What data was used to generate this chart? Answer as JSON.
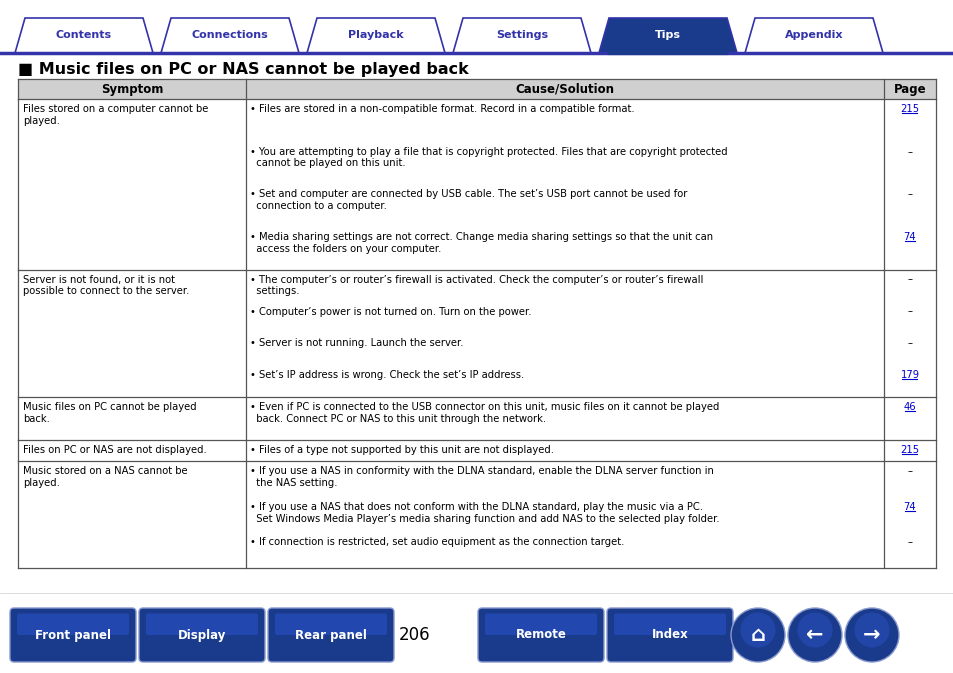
{
  "title": "Music files on PC or NAS cannot be played back",
  "tab_labels": [
    "Contents",
    "Connections",
    "Playback",
    "Settings",
    "Tips",
    "Appendix"
  ],
  "active_tab": 4,
  "tab_color_active": "#1a3a8c",
  "tab_color_inactive_fill": "#ffffff",
  "tab_color_inactive_text": "#3333aa",
  "tab_border_color": "#3333aa",
  "header_cols": [
    "Symptom",
    "Cause/Solution",
    "Page"
  ],
  "header_bg": "#d0d0d0",
  "rows": [
    {
      "symptom": "Files stored on a computer cannot be\nplayed.",
      "causes": [
        "• Files are stored in a non-compatible format. Record in a compatible format.",
        "• You are attempting to play a file that is copyright protected. Files that are copyright protected\n  cannot be played on this unit.",
        "• Set and computer are connected by USB cable. The set’s USB port cannot be used for\n  connection to a computer.",
        "• Media sharing settings are not correct. Change media sharing settings so that the unit can\n  access the folders on your computer."
      ],
      "pages": [
        "215",
        "–",
        "–",
        "74"
      ]
    },
    {
      "symptom": "Server is not found, or it is not\npossible to connect to the server.",
      "causes": [
        "• The computer’s or router’s firewall is activated. Check the computer’s or router’s firewall\n  settings.",
        "• Computer’s power is not turned on. Turn on the power.",
        "• Server is not running. Launch the server.",
        "• Set’s IP address is wrong. Check the set’s IP address."
      ],
      "pages": [
        "–",
        "–",
        "–",
        "179"
      ]
    },
    {
      "symptom": "Music files on PC cannot be played\nback.",
      "causes": [
        "• Even if PC is connected to the USB connector on this unit, music files on it cannot be played\n  back. Connect PC or NAS to this unit through the network."
      ],
      "pages": [
        "46"
      ]
    },
    {
      "symptom": "Files on PC or NAS are not displayed.",
      "causes": [
        "• Files of a type not supported by this unit are not displayed."
      ],
      "pages": [
        "215"
      ]
    },
    {
      "symptom": "Music stored on a NAS cannot be\nplayed.",
      "causes": [
        "• If you use a NAS in conformity with the DLNA standard, enable the DLNA server function in\n  the NAS setting.",
        "• If you use a NAS that does not conform with the DLNA standard, play the music via a PC.\n  Set Windows Media Player’s media sharing function and add NAS to the selected play folder.",
        "• If connection is restricted, set audio equipment as the connection target."
      ],
      "pages": [
        "–",
        "74",
        "–"
      ]
    }
  ],
  "bottom_buttons": [
    "Front panel",
    "Display",
    "Rear panel",
    "Remote",
    "Index"
  ],
  "page_number": "206",
  "button_color_dark": "#1a3a8c",
  "button_color_light": "#2a55cc",
  "bg_color": "#ffffff",
  "text_color": "#000000",
  "link_color": "#0000cc",
  "row_line_heights": [
    8,
    6,
    2,
    1,
    5
  ]
}
